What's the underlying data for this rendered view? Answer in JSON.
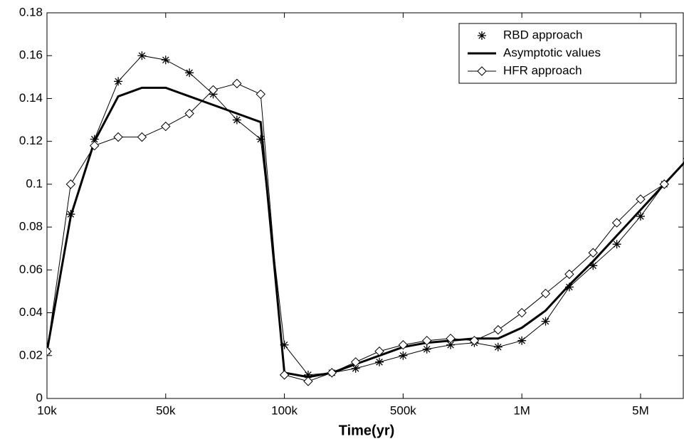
{
  "chart_data": {
    "type": "line",
    "x_label": "Time(yr)",
    "x": [
      0,
      1,
      2,
      3,
      4,
      5,
      6,
      7,
      8,
      9,
      10,
      11,
      12,
      13,
      14,
      15,
      16,
      17,
      18,
      19,
      20,
      21,
      22,
      23,
      24,
      25,
      26,
      27
    ],
    "xlim": [
      0,
      26.8
    ],
    "xticks": [
      {
        "value": 0,
        "label": "10k"
      },
      {
        "value": 5,
        "label": "50k"
      },
      {
        "value": 10,
        "label": "100k"
      },
      {
        "value": 15,
        "label": "500k"
      },
      {
        "value": 20,
        "label": "1M"
      },
      {
        "value": 25,
        "label": "5M"
      }
    ],
    "ylim": [
      0,
      0.18
    ],
    "yticks": [
      0,
      0.02,
      0.04,
      0.06,
      0.08,
      0.1,
      0.12,
      0.14,
      0.16,
      0.18
    ],
    "legend": "upper right",
    "series": [
      {
        "name": "RBD approach",
        "color": "#000000",
        "marker": "star",
        "width": 1,
        "values": [
          0.022,
          0.086,
          0.121,
          0.148,
          0.16,
          0.158,
          0.152,
          0.142,
          0.13,
          0.121,
          0.025,
          0.011,
          0.012,
          0.014,
          0.017,
          0.02,
          0.023,
          0.025,
          0.026,
          0.024,
          0.027,
          0.036,
          0.052,
          0.062,
          0.072,
          0.085,
          0.1,
          0.112
        ]
      },
      {
        "name": "Asymptotic values",
        "color": "#000000",
        "marker": "none",
        "width": 3,
        "values": [
          0.022,
          0.085,
          0.12,
          0.141,
          0.145,
          0.145,
          0.141,
          0.137,
          0.133,
          0.129,
          0.012,
          0.01,
          0.012,
          0.016,
          0.02,
          0.024,
          0.026,
          0.027,
          0.028,
          0.028,
          0.033,
          0.041,
          0.053,
          0.064,
          0.076,
          0.088,
          0.1,
          0.112
        ]
      },
      {
        "name": "HFR approach",
        "color": "#000000",
        "marker": "diamond",
        "width": 1,
        "values": [
          0.022,
          0.1,
          0.118,
          0.122,
          0.122,
          0.127,
          0.133,
          0.144,
          0.147,
          0.142,
          0.011,
          0.008,
          0.012,
          0.017,
          0.022,
          0.025,
          0.027,
          0.028,
          0.027,
          0.032,
          0.04,
          0.049,
          0.058,
          0.068,
          0.082,
          0.093,
          0.1,
          0.112
        ]
      }
    ]
  }
}
